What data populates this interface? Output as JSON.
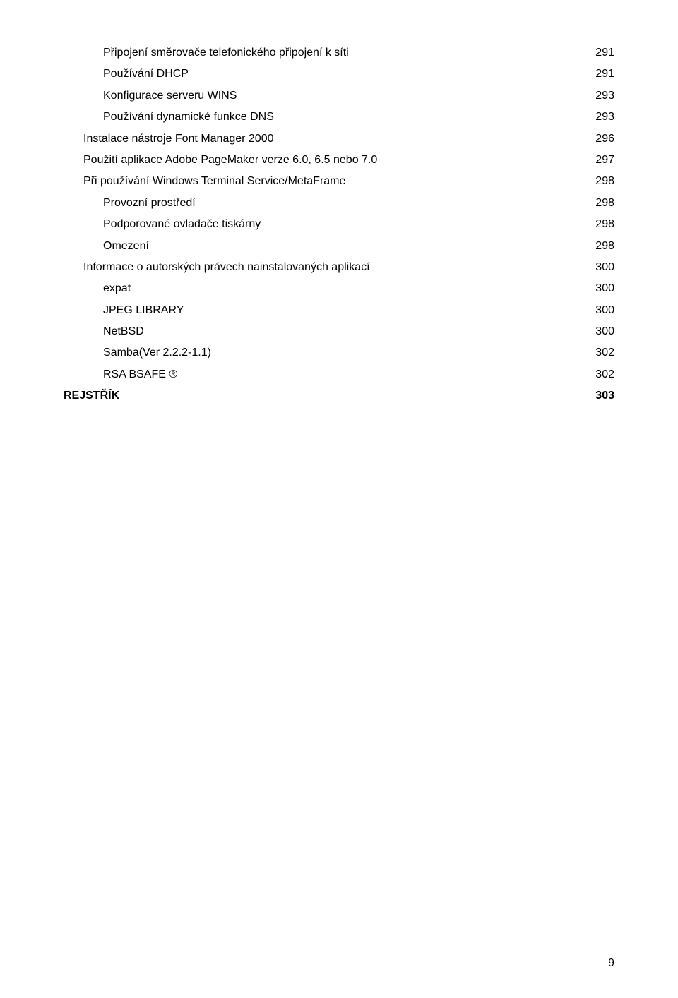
{
  "toc": [
    {
      "label": "Připojení směrovače telefonického připojení k síti",
      "page": "291",
      "indent": 2,
      "bold": false
    },
    {
      "label": "Používání DHCP",
      "page": "291",
      "indent": 2,
      "bold": false
    },
    {
      "label": "Konfigurace serveru WINS",
      "page": "293",
      "indent": 2,
      "bold": false
    },
    {
      "label": "Používání dynamické funkce DNS",
      "page": "293",
      "indent": 2,
      "bold": false
    },
    {
      "label": "Instalace nástroje Font Manager 2000",
      "page": "296",
      "indent": 1,
      "bold": false
    },
    {
      "label": "Použití aplikace Adobe PageMaker verze 6.0, 6.5 nebo 7.0",
      "page": "297",
      "indent": 1,
      "bold": false
    },
    {
      "label": "Při používání Windows Terminal Service/MetaFrame",
      "page": "298",
      "indent": 1,
      "bold": false
    },
    {
      "label": "Provozní prostředí",
      "page": "298",
      "indent": 2,
      "bold": false
    },
    {
      "label": "Podporované ovladače tiskárny",
      "page": "298",
      "indent": 2,
      "bold": false
    },
    {
      "label": "Omezení",
      "page": "298",
      "indent": 2,
      "bold": false
    },
    {
      "label": "Informace o autorských právech nainstalovaných aplikací",
      "page": "300",
      "indent": 1,
      "bold": false
    },
    {
      "label": "expat",
      "page": "300",
      "indent": 2,
      "bold": false
    },
    {
      "label": "JPEG LIBRARY",
      "page": "300",
      "indent": 2,
      "bold": false
    },
    {
      "label": "NetBSD",
      "page": "300",
      "indent": 2,
      "bold": false
    },
    {
      "label": "Samba(Ver 2.2.2-1.1)",
      "page": "302",
      "indent": 2,
      "bold": false
    },
    {
      "label": "RSA BSAFE ®",
      "page": "302",
      "indent": 2,
      "bold": false
    },
    {
      "label": "REJSTŘÍK",
      "page": "303",
      "indent": 0,
      "bold": true
    }
  ],
  "footer_page_number": "9"
}
